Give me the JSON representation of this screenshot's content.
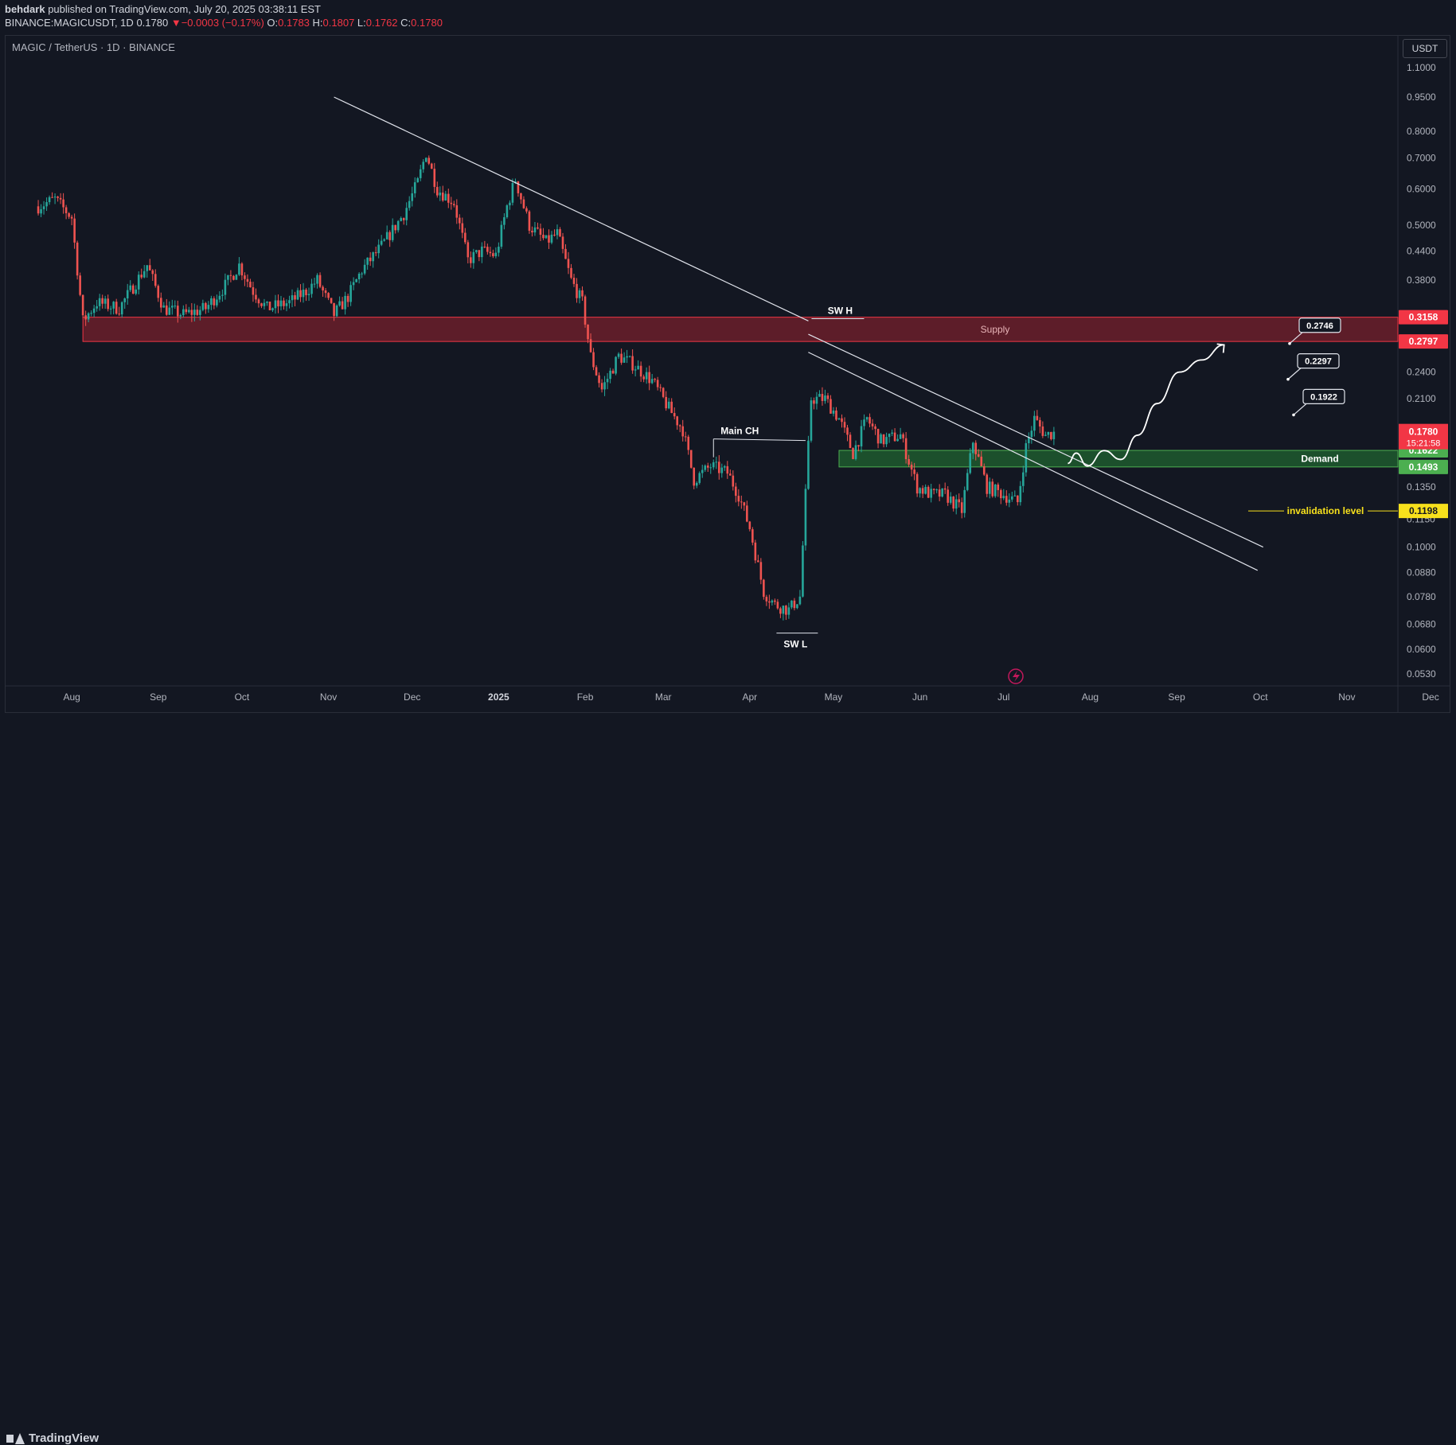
{
  "header": {
    "author": "behdark",
    "published_text": "published on TradingView.com, July 20, 2025 03:38:11 EST",
    "symbol": "BINANCE:MAGICUSDT, 1D",
    "last": "0.1780",
    "change_arrow": "▼",
    "change": "−0.0003 (−0.17%)",
    "o_label": "O:",
    "o": "0.1783",
    "h_label": "H:",
    "h": "0.1807",
    "l_label": "L:",
    "l": "0.1762",
    "c_label": "C:",
    "c": "0.1780"
  },
  "chart_title": "MAGIC / TetherUS · 1D · BINANCE",
  "currency_button": "USDT",
  "footer": {
    "brand": "TradingView"
  },
  "colors": {
    "background": "#131722",
    "up": "#26a69a",
    "down": "#ef5350",
    "supply_fill": "#6b1f2a",
    "supply_border": "#f23645",
    "demand_fill": "#1e5a2e",
    "demand_border": "#4caf50",
    "invalidation": "#f7e01c",
    "axis_text": "#b2b5be"
  },
  "chart_data": {
    "type": "candlestick",
    "scale": "log",
    "price_ticks": [
      "1.1000",
      "0.9500",
      "0.8000",
      "0.7000",
      "0.6000",
      "0.5000",
      "0.4400",
      "0.3800",
      "0.2400",
      "0.2100",
      "0.1350",
      "0.1150",
      "0.1000",
      "0.0880",
      "0.0780",
      "0.0680",
      "0.0600",
      "0.0530"
    ],
    "time_ticks": [
      {
        "label": "Aug",
        "date": "2024-08-01"
      },
      {
        "label": "Sep",
        "date": "2024-09-01"
      },
      {
        "label": "Oct",
        "date": "2024-10-01"
      },
      {
        "label": "Nov",
        "date": "2024-11-01"
      },
      {
        "label": "Dec",
        "date": "2024-12-01"
      },
      {
        "label": "2025",
        "date": "2025-01-01",
        "bold": true
      },
      {
        "label": "Feb",
        "date": "2025-02-01"
      },
      {
        "label": "Mar",
        "date": "2025-03-01"
      },
      {
        "label": "Apr",
        "date": "2025-04-01"
      },
      {
        "label": "May",
        "date": "2025-05-01"
      },
      {
        "label": "Jun",
        "date": "2025-06-01"
      },
      {
        "label": "Jul",
        "date": "2025-07-01"
      },
      {
        "label": "Aug",
        "date": "2025-08-01"
      },
      {
        "label": "Sep",
        "date": "2025-09-01"
      },
      {
        "label": "Oct",
        "date": "2025-10-01"
      },
      {
        "label": "Nov",
        "date": "2025-11-01"
      },
      {
        "label": "Dec",
        "date": "2025-12-01"
      }
    ],
    "price_path": [
      [
        "2024-07-20",
        0.55
      ],
      [
        "2024-07-26",
        0.57
      ],
      [
        "2024-08-01",
        0.52
      ],
      [
        "2024-08-05",
        0.31
      ],
      [
        "2024-08-10",
        0.34
      ],
      [
        "2024-08-18",
        0.33
      ],
      [
        "2024-08-28",
        0.41
      ],
      [
        "2024-09-03",
        0.33
      ],
      [
        "2024-09-10",
        0.32
      ],
      [
        "2024-09-18",
        0.33
      ],
      [
        "2024-09-25",
        0.37
      ],
      [
        "2024-09-30",
        0.41
      ],
      [
        "2024-10-05",
        0.36
      ],
      [
        "2024-10-10",
        0.33
      ],
      [
        "2024-10-18",
        0.34
      ],
      [
        "2024-10-24",
        0.36
      ],
      [
        "2024-10-28",
        0.38
      ],
      [
        "2024-11-03",
        0.32
      ],
      [
        "2024-11-08",
        0.35
      ],
      [
        "2024-11-13",
        0.4
      ],
      [
        "2024-11-20",
        0.45
      ],
      [
        "2024-11-28",
        0.53
      ],
      [
        "2024-12-03",
        0.62
      ],
      [
        "2024-12-06",
        0.72
      ],
      [
        "2024-12-10",
        0.6
      ],
      [
        "2024-12-16",
        0.56
      ],
      [
        "2024-12-21",
        0.42
      ],
      [
        "2024-12-26",
        0.44
      ],
      [
        "2024-12-31",
        0.43
      ],
      [
        "2025-01-04",
        0.55
      ],
      [
        "2025-01-07",
        0.63
      ],
      [
        "2025-01-12",
        0.5
      ],
      [
        "2025-01-18",
        0.46
      ],
      [
        "2025-01-22",
        0.48
      ],
      [
        "2025-01-27",
        0.38
      ],
      [
        "2025-01-31",
        0.34
      ],
      [
        "2025-02-03",
        0.26
      ],
      [
        "2025-02-07",
        0.22
      ],
      [
        "2025-02-13",
        0.26
      ],
      [
        "2025-02-18",
        0.25
      ],
      [
        "2025-02-25",
        0.23
      ],
      [
        "2025-03-03",
        0.2
      ],
      [
        "2025-03-08",
        0.18
      ],
      [
        "2025-03-12",
        0.14
      ],
      [
        "2025-03-18",
        0.15
      ],
      [
        "2025-03-24",
        0.145
      ],
      [
        "2025-03-28",
        0.13
      ],
      [
        "2025-04-01",
        0.11
      ],
      [
        "2025-04-06",
        0.08
      ],
      [
        "2025-04-10",
        0.075
      ],
      [
        "2025-04-15",
        0.073
      ],
      [
        "2025-04-19",
        0.078
      ],
      [
        "2025-04-21",
        0.13
      ],
      [
        "2025-04-23",
        0.21
      ],
      [
        "2025-04-28",
        0.21
      ],
      [
        "2025-05-03",
        0.19
      ],
      [
        "2025-05-08",
        0.16
      ],
      [
        "2025-05-13",
        0.19
      ],
      [
        "2025-05-18",
        0.17
      ],
      [
        "2025-05-25",
        0.175
      ],
      [
        "2025-05-31",
        0.135
      ],
      [
        "2025-06-05",
        0.13
      ],
      [
        "2025-06-10",
        0.13
      ],
      [
        "2025-06-16",
        0.12
      ],
      [
        "2025-06-20",
        0.17
      ],
      [
        "2025-06-25",
        0.135
      ],
      [
        "2025-07-01",
        0.13
      ],
      [
        "2025-07-06",
        0.125
      ],
      [
        "2025-07-09",
        0.165
      ],
      [
        "2025-07-12",
        0.19
      ],
      [
        "2025-07-16",
        0.175
      ],
      [
        "2025-07-20",
        0.178
      ]
    ],
    "zones": [
      {
        "name": "Supply",
        "label": "Supply",
        "top": 0.3158,
        "bottom": 0.2797,
        "top_label": "0.3158",
        "bottom_label": "0.2797",
        "start": "2024-08-05"
      },
      {
        "name": "Demand",
        "label": "Demand",
        "top": 0.1622,
        "bottom": 0.1493,
        "top_label": "0.1622",
        "bottom_label": "0.1493",
        "start": "2025-05-03"
      }
    ],
    "invalidation": {
      "label": "invalidation level",
      "price": 0.1198,
      "price_label": "0.1198"
    },
    "last_price": {
      "value": 0.178,
      "label": "0.1780",
      "countdown": "15:21:58"
    },
    "targets": [
      {
        "value": "0.2746",
        "price": 0.2746
      },
      {
        "value": "0.2297",
        "price": 0.2297
      },
      {
        "value": "0.1922",
        "price": 0.1922
      }
    ],
    "annotations": [
      {
        "text": "SW H",
        "date": "2025-04-22",
        "price": 0.325
      },
      {
        "text": "Main CH",
        "date": "2025-03-25",
        "price": 0.178
      },
      {
        "text": "SW L",
        "date": "2025-04-14",
        "price": 0.0635
      }
    ],
    "trendlines": [
      {
        "from": [
          "2024-11-03",
          0.95
        ],
        "to": [
          "2025-04-22",
          0.31
        ]
      },
      {
        "from": [
          "2025-04-22",
          0.29
        ],
        "to": [
          "2025-10-02",
          0.1
        ]
      },
      {
        "from": [
          "2025-04-22",
          0.265
        ],
        "to": [
          "2025-09-30",
          0.089
        ]
      }
    ],
    "projection": [
      [
        "2025-07-24",
        0.152
      ],
      [
        "2025-07-27",
        0.16
      ],
      [
        "2025-07-31",
        0.15
      ],
      [
        "2025-08-06",
        0.162
      ],
      [
        "2025-08-12",
        0.155
      ],
      [
        "2025-08-18",
        0.175
      ],
      [
        "2025-08-25",
        0.205
      ],
      [
        "2025-09-02",
        0.24
      ],
      [
        "2025-09-10",
        0.255
      ],
      [
        "2025-09-18",
        0.275
      ]
    ],
    "ylim": [
      0.05,
      1.15
    ]
  }
}
